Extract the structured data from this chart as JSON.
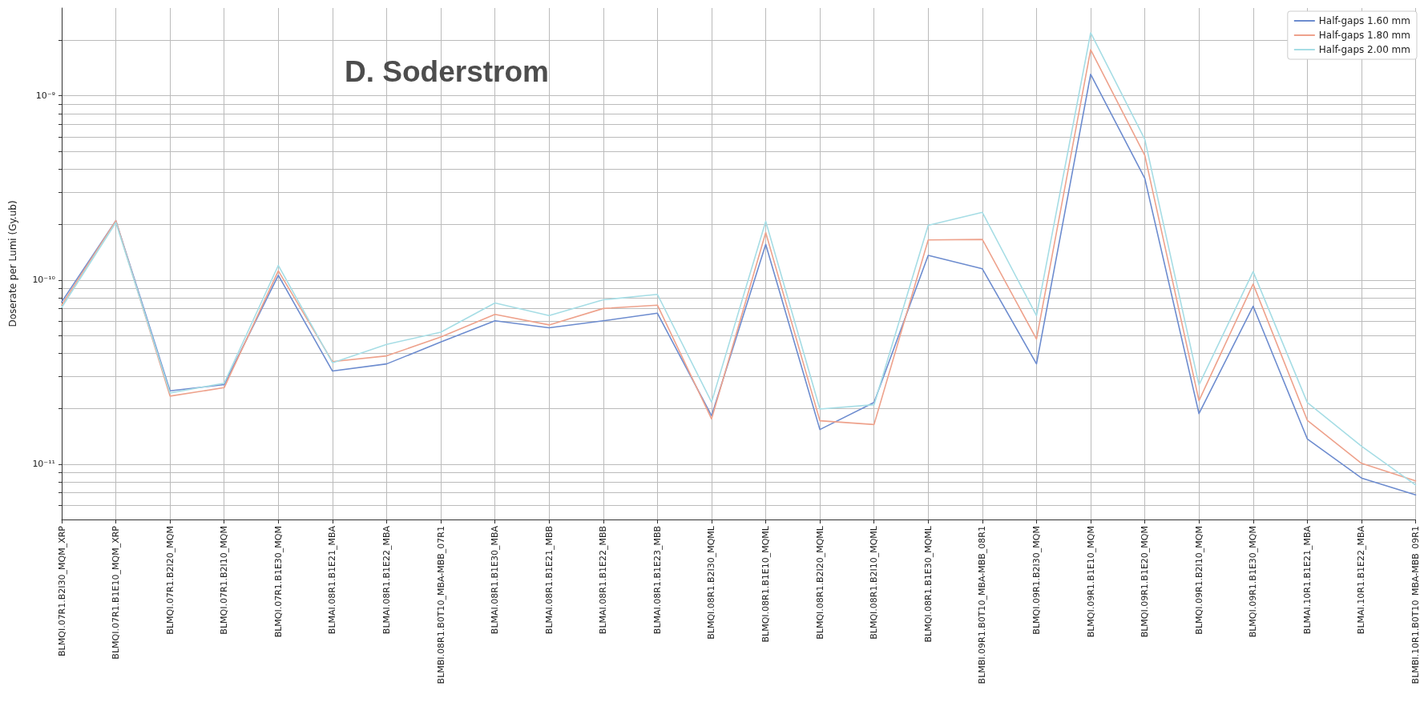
{
  "chart_data": {
    "type": "line",
    "title": "D. Soderstrom",
    "ylabel": "Doserate per Lumi (Gy.ub)",
    "categories": [
      "BLMQI.07R1.B2I30_MQM_XRP",
      "BLMQI.07R1.B1E10_MQM_XRP",
      "BLMQI.07R1.B2I20_MQM",
      "BLMQI.07R1.B2I10_MQM",
      "BLMQI.07R1.B1E30_MQM",
      "BLMAI.08R1.B1E21_MBA",
      "BLMAI.08R1.B1E22_MBA",
      "BLMBI.08R1.B0T10_MBA-MBB_07R1",
      "BLMAI.08R1.B1E30_MBA",
      "BLMAI.08R1.B1E21_MBB",
      "BLMAI.08R1.B1E22_MBB",
      "BLMAI.08R1.B1E23_MBB",
      "BLMQI.08R1.B2I30_MQML",
      "BLMQI.08R1.B1E10_MQML",
      "BLMQI.08R1.B2I20_MQML",
      "BLMQI.08R1.B2I10_MQML",
      "BLMQI.08R1.B1E30_MQML",
      "BLMBI.09R1.B0T10_MBA-MBB_08R1",
      "BLMQI.09R1.B2I30_MQM",
      "BLMQI.09R1.B1E10_MQM",
      "BLMQI.09R1.B1E20_MQM",
      "BLMQI.09R1.B2I10_MQM",
      "BLMQI.09R1.B1E30_MQM",
      "BLMAI.10R1.B1E21_MBA",
      "BLMAI.10R1.B1E22_MBA",
      "BLMBI.10R1.B0T10_MBA-MBB_09R1"
    ],
    "series": [
      {
        "name": "Half-gaps 1.60 mm",
        "color": "#6d8ccf",
        "values": [
          7.6e-11,
          2.1e-10,
          2.5e-11,
          2.7e-11,
          1.06e-10,
          3.2e-11,
          3.5e-11,
          4.6e-11,
          6e-11,
          5.5e-11,
          6e-11,
          6.6e-11,
          1.83e-11,
          1.56e-10,
          1.54e-11,
          2.16e-11,
          1.36e-10,
          1.15e-10,
          3.5e-11,
          1.31e-09,
          3.56e-10,
          1.88e-11,
          7.2e-11,
          1.37e-11,
          8.4e-12,
          6.8e-12
        ]
      },
      {
        "name": "Half-gaps 1.80 mm",
        "color": "#eea28c",
        "values": [
          7.3e-11,
          2.1e-10,
          2.34e-11,
          2.6e-11,
          1.12e-10,
          3.6e-11,
          3.87e-11,
          4.9e-11,
          6.5e-11,
          5.7e-11,
          7e-11,
          7.3e-11,
          1.76e-11,
          1.81e-10,
          1.72e-11,
          1.64e-11,
          1.65e-10,
          1.66e-10,
          4.77e-11,
          1.78e-09,
          4.75e-10,
          2.21e-11,
          9.5e-11,
          1.73e-11,
          1.01e-11,
          8.1e-12
        ]
      },
      {
        "name": "Half-gaps 2.00 mm",
        "color": "#a6dde5",
        "values": [
          7.1e-11,
          2.05e-10,
          2.43e-11,
          2.75e-11,
          1.2e-10,
          3.55e-11,
          4.47e-11,
          5.2e-11,
          7.5e-11,
          6.4e-11,
          7.8e-11,
          8.35e-11,
          2.17e-11,
          2.08e-10,
          1.99e-11,
          2.1e-11,
          1.98e-10,
          2.33e-10,
          6.4e-11,
          2.2e-09,
          5.8e-10,
          2.69e-11,
          1.11e-10,
          2.16e-11,
          1.25e-11,
          7.7e-12
        ]
      }
    ],
    "log": "y",
    "ylim": [
      5e-12,
      3e-09
    ],
    "yticks": [
      {
        "value": 6e-12,
        "label": null
      },
      {
        "value": 7e-12,
        "label": null
      },
      {
        "value": 8e-12,
        "label": null
      },
      {
        "value": 9e-12,
        "label": null
      },
      {
        "value": 1e-11,
        "label": "10⁻¹¹"
      },
      {
        "value": 2e-11,
        "label": null
      },
      {
        "value": 3e-11,
        "label": null
      },
      {
        "value": 4e-11,
        "label": null
      },
      {
        "value": 5e-11,
        "label": null
      },
      {
        "value": 6e-11,
        "label": null
      },
      {
        "value": 7e-11,
        "label": null
      },
      {
        "value": 8e-11,
        "label": null
      },
      {
        "value": 9e-11,
        "label": null
      },
      {
        "value": 1e-10,
        "label": "10⁻¹⁰"
      },
      {
        "value": 2e-10,
        "label": null
      },
      {
        "value": 3e-10,
        "label": null
      },
      {
        "value": 4e-10,
        "label": null
      },
      {
        "value": 5e-10,
        "label": null
      },
      {
        "value": 6e-10,
        "label": null
      },
      {
        "value": 7e-10,
        "label": null
      },
      {
        "value": 8e-10,
        "label": null
      },
      {
        "value": 9e-10,
        "label": null
      },
      {
        "value": 1e-09,
        "label": "10⁻⁹"
      },
      {
        "value": 2e-09,
        "label": null
      }
    ],
    "grid": true,
    "legend": "top right",
    "marker": "none",
    "line_style": "solid"
  }
}
